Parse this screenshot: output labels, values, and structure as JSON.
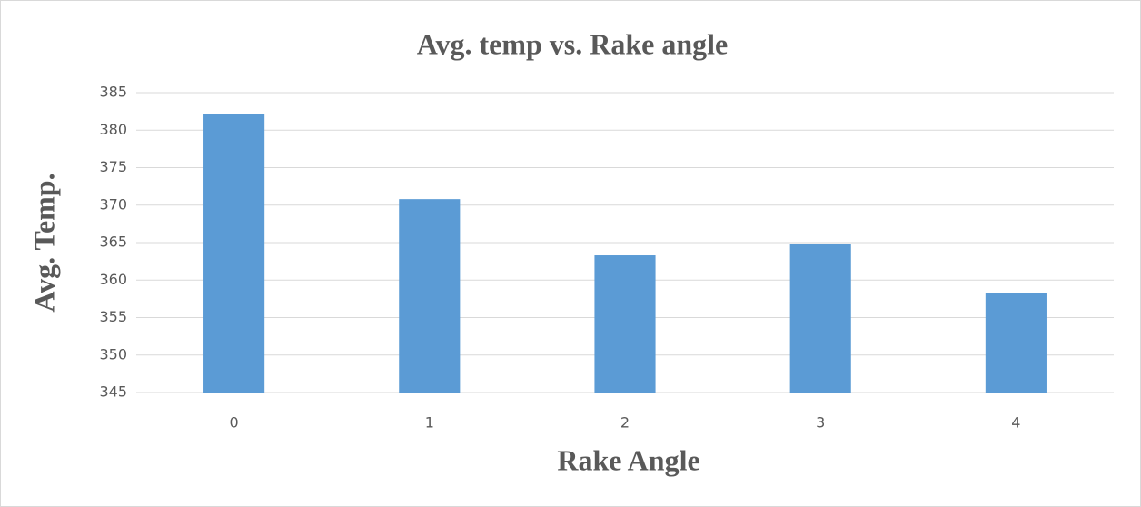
{
  "chart_data": {
    "type": "bar",
    "title": "Avg. temp vs. Rake angle",
    "xlabel": "Rake Angle",
    "ylabel": "Avg. Temp.",
    "categories": [
      "0",
      "1",
      "2",
      "3",
      "4"
    ],
    "values": [
      382.1,
      370.8,
      363.3,
      364.8,
      358.3
    ],
    "color": "#5b9bd5",
    "ylim": [
      345,
      385
    ],
    "yticks": [
      345,
      350,
      355,
      360,
      365,
      370,
      375,
      380,
      385
    ],
    "grid": true
  }
}
